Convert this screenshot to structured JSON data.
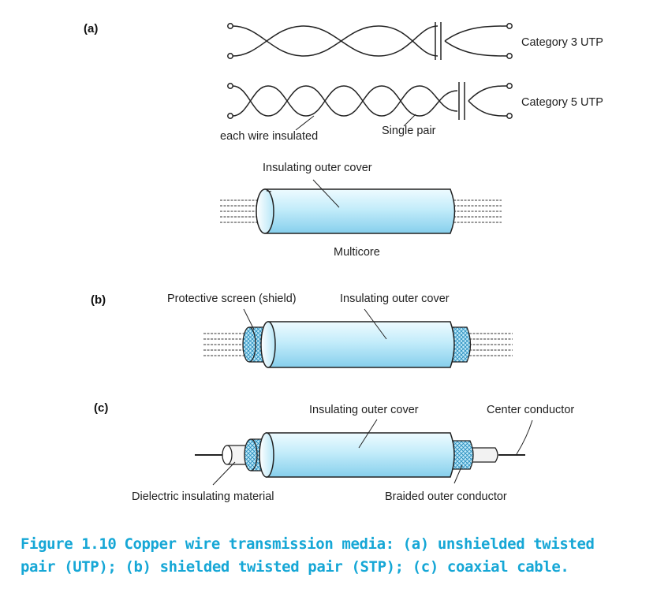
{
  "panels": {
    "a": {
      "tag": "(a)",
      "cat3": "Category 3 UTP",
      "cat5": "Category 5 UTP",
      "each_wire": "each wire insulated",
      "single_pair": "Single pair",
      "outer_cover": "Insulating outer cover",
      "multicore": "Multicore"
    },
    "b": {
      "tag": "(b)",
      "shield": "Protective screen (shield)",
      "outer_cover": "Insulating outer cover"
    },
    "c": {
      "tag": "(c)",
      "outer_cover": "Insulating outer cover",
      "center": "Center conductor",
      "dielectric": "Dielectric insulating material",
      "braided": "Braided outer conductor"
    }
  },
  "caption": {
    "number": "Figure 1.10",
    "line1": "Copper wire transmission media: (a) unshielded twisted",
    "line2": "pair (UTP); (b) shielded twisted pair (STP); (c) coaxial cable."
  },
  "colors": {
    "cable_light": "#e6f8fe",
    "cable_mid": "#aee3f6",
    "cable_dark": "#7cc9e8",
    "braid": "#6ec3e6",
    "caption": "#16a7d6"
  }
}
